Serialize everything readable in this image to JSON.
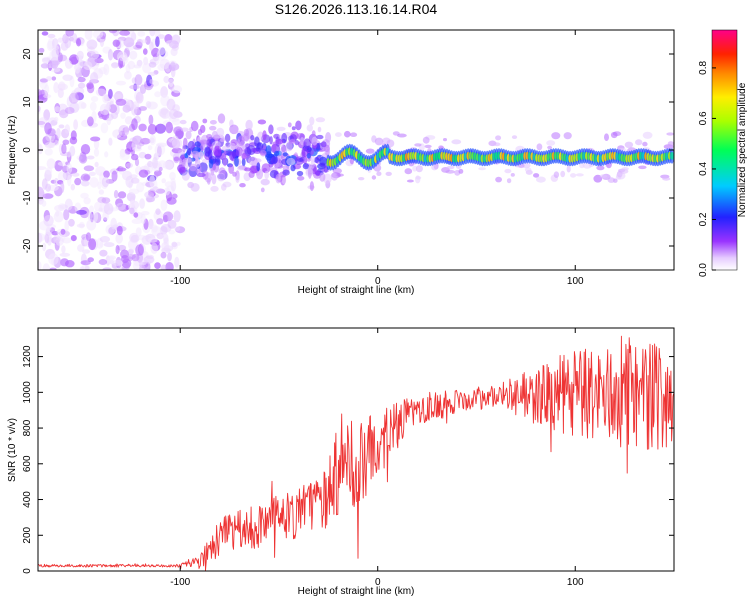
{
  "title": "S126.2026.113.16.14.R04",
  "colors": {
    "snr_line": "#ee3333",
    "axis": "#000000"
  },
  "chart_data": [
    {
      "type": "heatmap",
      "name": "spectrogram",
      "xlabel": "Height of straight line (km)",
      "ylabel": "Frequency (Hz)",
      "xlim": [
        -172,
        150
      ],
      "ylim": [
        -25,
        25
      ],
      "xticks": [
        -100,
        0,
        100
      ],
      "xtick_labels": [
        "-100",
        "0",
        "100"
      ],
      "yticks": [
        -20,
        -10,
        0,
        10,
        20
      ],
      "ytick_labels": [
        "-20",
        "-10",
        "0",
        "10",
        "20"
      ],
      "colorbar": {
        "label": "Normalized spectral amplitude",
        "range": [
          0,
          0.95
        ],
        "ticks": [
          0.0,
          0.2,
          0.4,
          0.6,
          0.8
        ],
        "tick_labels": [
          "0.0",
          "0.2",
          "0.4",
          "0.6",
          "0.8"
        ],
        "colormap": "rainbow (white-violet-blue-cyan-green-yellow-red-magenta)"
      },
      "features": [
        {
          "x_range": [
            -172,
            -100
          ],
          "freq_range": [
            -25,
            25
          ],
          "amplitude": 0.1,
          "note": "diffuse noise"
        },
        {
          "x_range": [
            -100,
            -25
          ],
          "freq_range": [
            -8,
            6
          ],
          "amplitude": 0.25,
          "note": "scattered blobs"
        },
        {
          "x_range": [
            -25,
            150
          ],
          "freq_center": -1.5,
          "freq_halfwidth": 1.5,
          "amplitude": 0.7,
          "note": "narrow band"
        }
      ]
    },
    {
      "type": "line",
      "name": "snr",
      "xlabel": "Height of straight line (km)",
      "ylabel": "SNR (10 * v/v)",
      "xlim": [
        -172,
        150
      ],
      "ylim": [
        0,
        1360
      ],
      "xticks": [
        -100,
        0,
        100
      ],
      "xtick_labels": [
        "-100",
        "0",
        "100"
      ],
      "yticks": [
        0,
        200,
        400,
        600,
        800,
        1000,
        1200
      ],
      "ytick_labels": [
        "0",
        "200",
        "400",
        "600",
        "800",
        "1000",
        "1200"
      ],
      "envelope": {
        "x": [
          -172,
          -100,
          -90,
          -80,
          -60,
          -40,
          -30,
          -25,
          -20,
          -10,
          0,
          10,
          20,
          40,
          60,
          80,
          100,
          120,
          140,
          150
        ],
        "y": [
          30,
          30,
          60,
          180,
          250,
          320,
          380,
          520,
          560,
          600,
          700,
          820,
          900,
          950,
          980,
          980,
          990,
          990,
          980,
          1000
        ]
      },
      "noise_amplitude": [
        [
          -172,
          8
        ],
        [
          -100,
          8
        ],
        [
          -90,
          40
        ],
        [
          -80,
          120
        ],
        [
          -30,
          150
        ],
        [
          -25,
          280
        ],
        [
          -10,
          250
        ],
        [
          0,
          180
        ],
        [
          20,
          90
        ],
        [
          60,
          60
        ],
        [
          80,
          160
        ],
        [
          100,
          260
        ],
        [
          150,
          320
        ]
      ]
    }
  ]
}
